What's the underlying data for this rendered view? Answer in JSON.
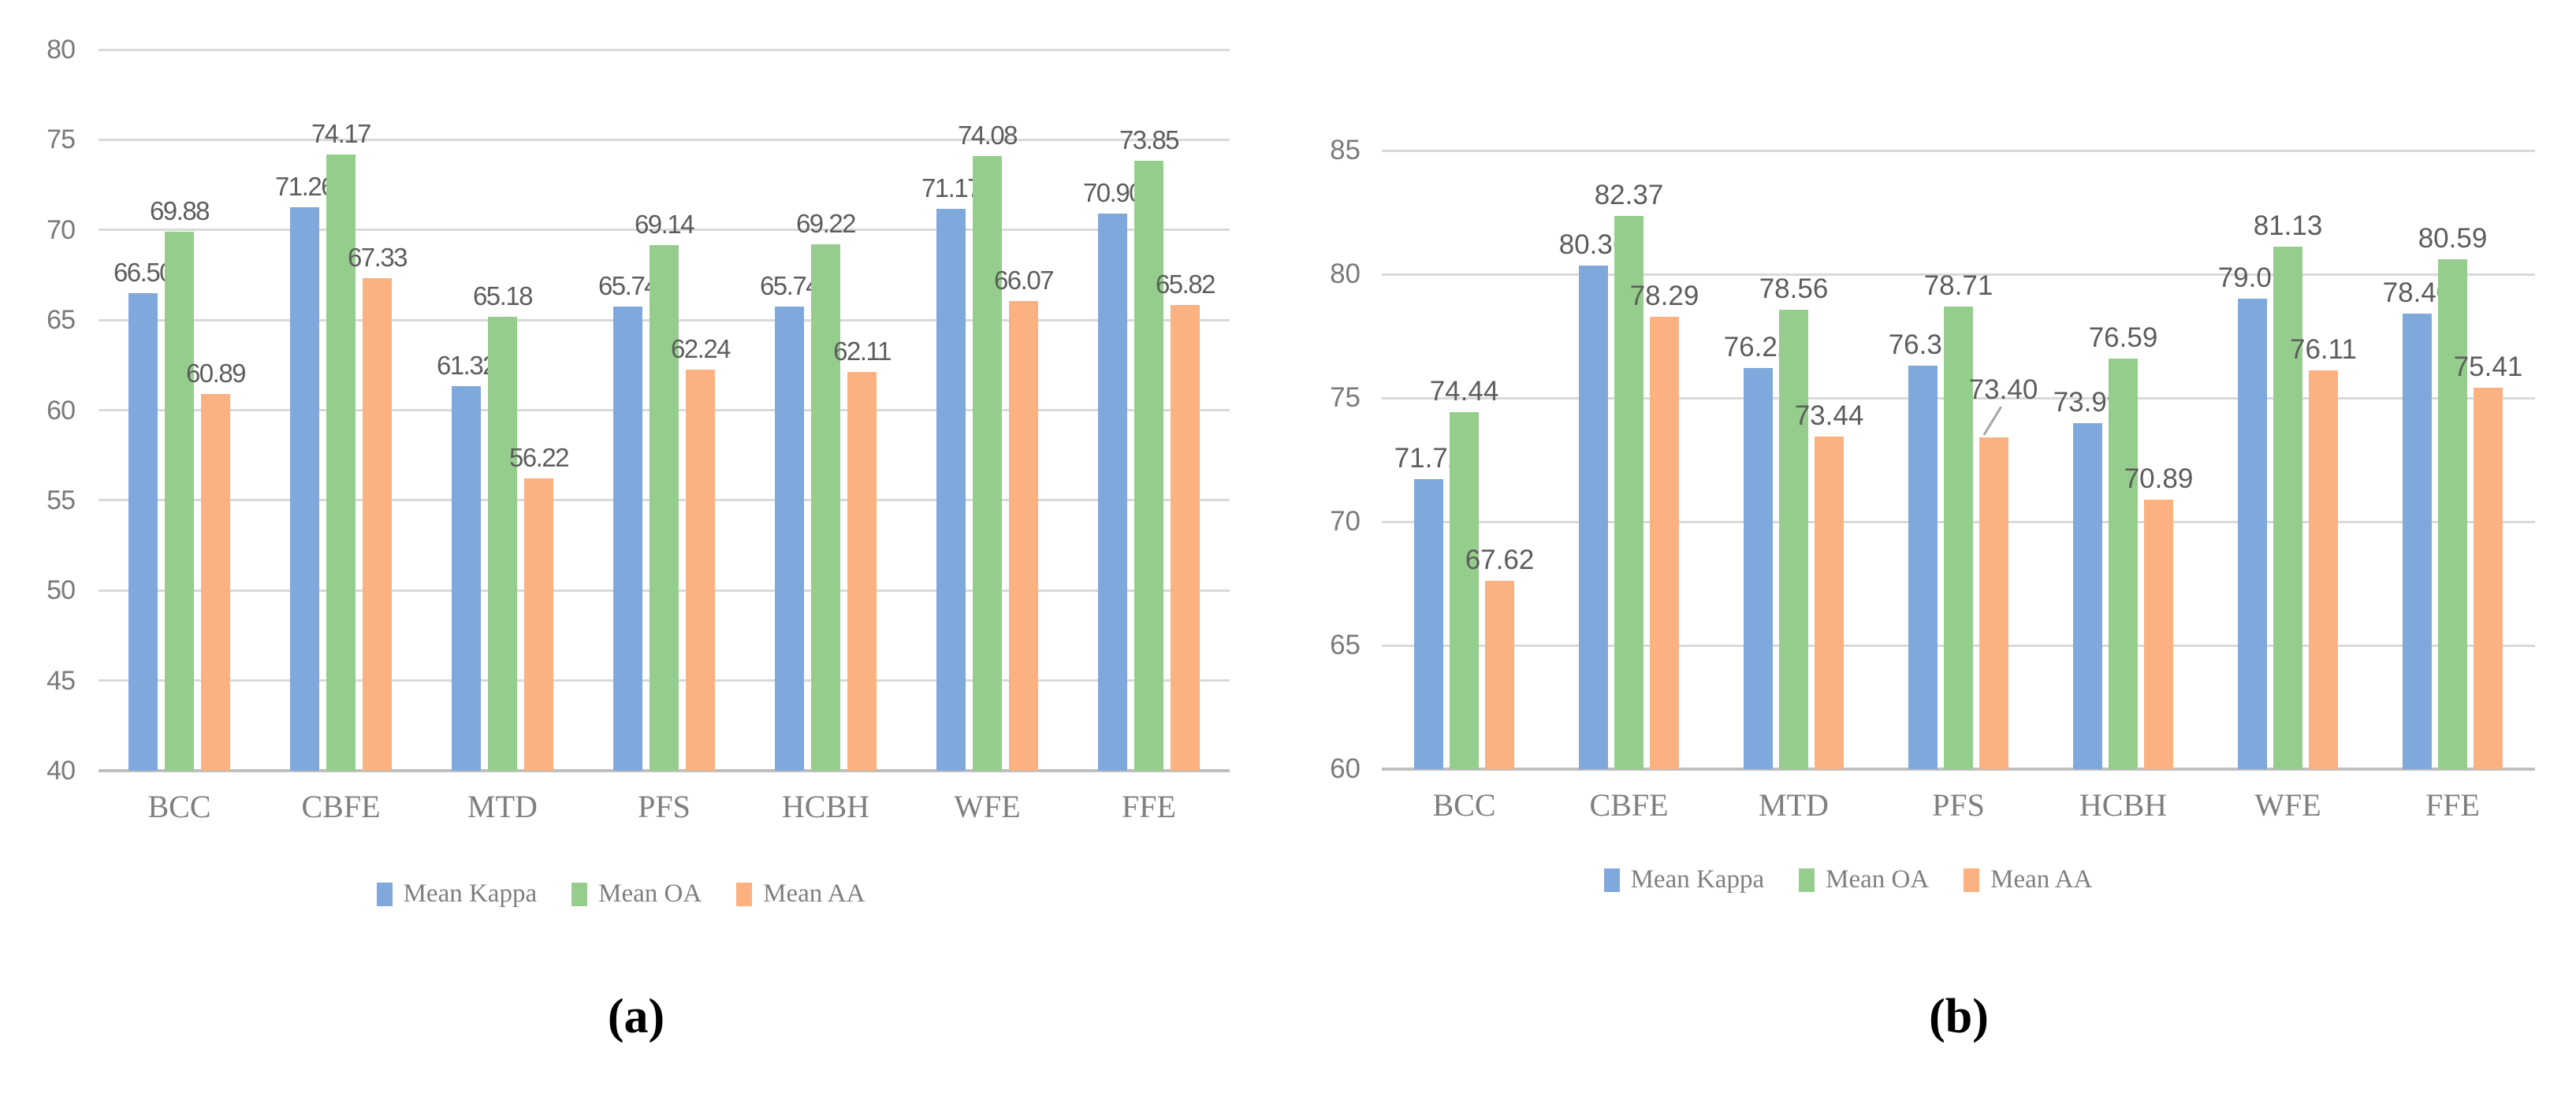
{
  "colors": {
    "background": "#ffffff",
    "series_blue": "#7FA8DD",
    "series_green": "#95CE8C",
    "series_orange": "#FBB180",
    "gridline": "#D9D9D9",
    "axis_line": "#BFBFBF",
    "tick_text": "#7A7A7A",
    "category_text": "#7F7F7F",
    "value_text": "#5D5D5D",
    "legend_text": "#7F7F7F",
    "caption_text": "#000000",
    "leader_line": "#A6A6A6"
  },
  "chart_data": [
    {
      "id": "a",
      "type": "bar",
      "caption": "(a)",
      "categories": [
        "BCC",
        "CBFE",
        "MTD",
        "PFS",
        "HCBH",
        "WFE",
        "FFE"
      ],
      "series": [
        {
          "name": "Mean Kappa",
          "color_key": "series_blue",
          "values": [
            66.5,
            71.26,
            61.32,
            65.74,
            65.74,
            71.17,
            70.9
          ]
        },
        {
          "name": "Mean OA",
          "color_key": "series_green",
          "values": [
            69.88,
            74.17,
            65.18,
            69.14,
            69.22,
            74.08,
            73.85
          ]
        },
        {
          "name": "Mean AA",
          "color_key": "series_orange",
          "values": [
            60.89,
            67.33,
            56.22,
            62.24,
            62.11,
            66.07,
            65.82
          ]
        }
      ],
      "ylim": [
        40,
        80
      ],
      "yticks": [
        40,
        45,
        50,
        55,
        60,
        65,
        70,
        75,
        80
      ],
      "grid": true,
      "legend_position": "bottom",
      "value_labels": true,
      "label_decimals": 2,
      "annotations": []
    },
    {
      "id": "b",
      "type": "bar",
      "caption": "(b)",
      "categories": [
        "BCC",
        "CBFE",
        "MTD",
        "PFS",
        "HCBH",
        "WFE",
        "FFE"
      ],
      "series": [
        {
          "name": "Mean Kappa",
          "color_key": "series_blue",
          "values": [
            71.72,
            80.36,
            76.22,
            76.31,
            73.99,
            79.01,
            78.4
          ]
        },
        {
          "name": "Mean OA",
          "color_key": "series_green",
          "values": [
            74.44,
            82.37,
            78.56,
            78.71,
            76.59,
            81.13,
            80.59
          ]
        },
        {
          "name": "Mean AA",
          "color_key": "series_orange",
          "values": [
            67.62,
            78.29,
            73.44,
            73.4,
            70.89,
            76.11,
            75.41
          ]
        }
      ],
      "ylim": [
        60,
        85
      ],
      "yticks": [
        60,
        65,
        70,
        75,
        80,
        85
      ],
      "grid": true,
      "legend_position": "bottom",
      "value_labels": true,
      "label_decimals": 2,
      "annotations": [
        {
          "category": "PFS",
          "series": "Mean AA",
          "label_dx": 12,
          "label_dy": -34,
          "leader": {
            "x1": 10,
            "y1": -38,
            "x2": -12,
            "y2": -2
          }
        }
      ]
    }
  ]
}
